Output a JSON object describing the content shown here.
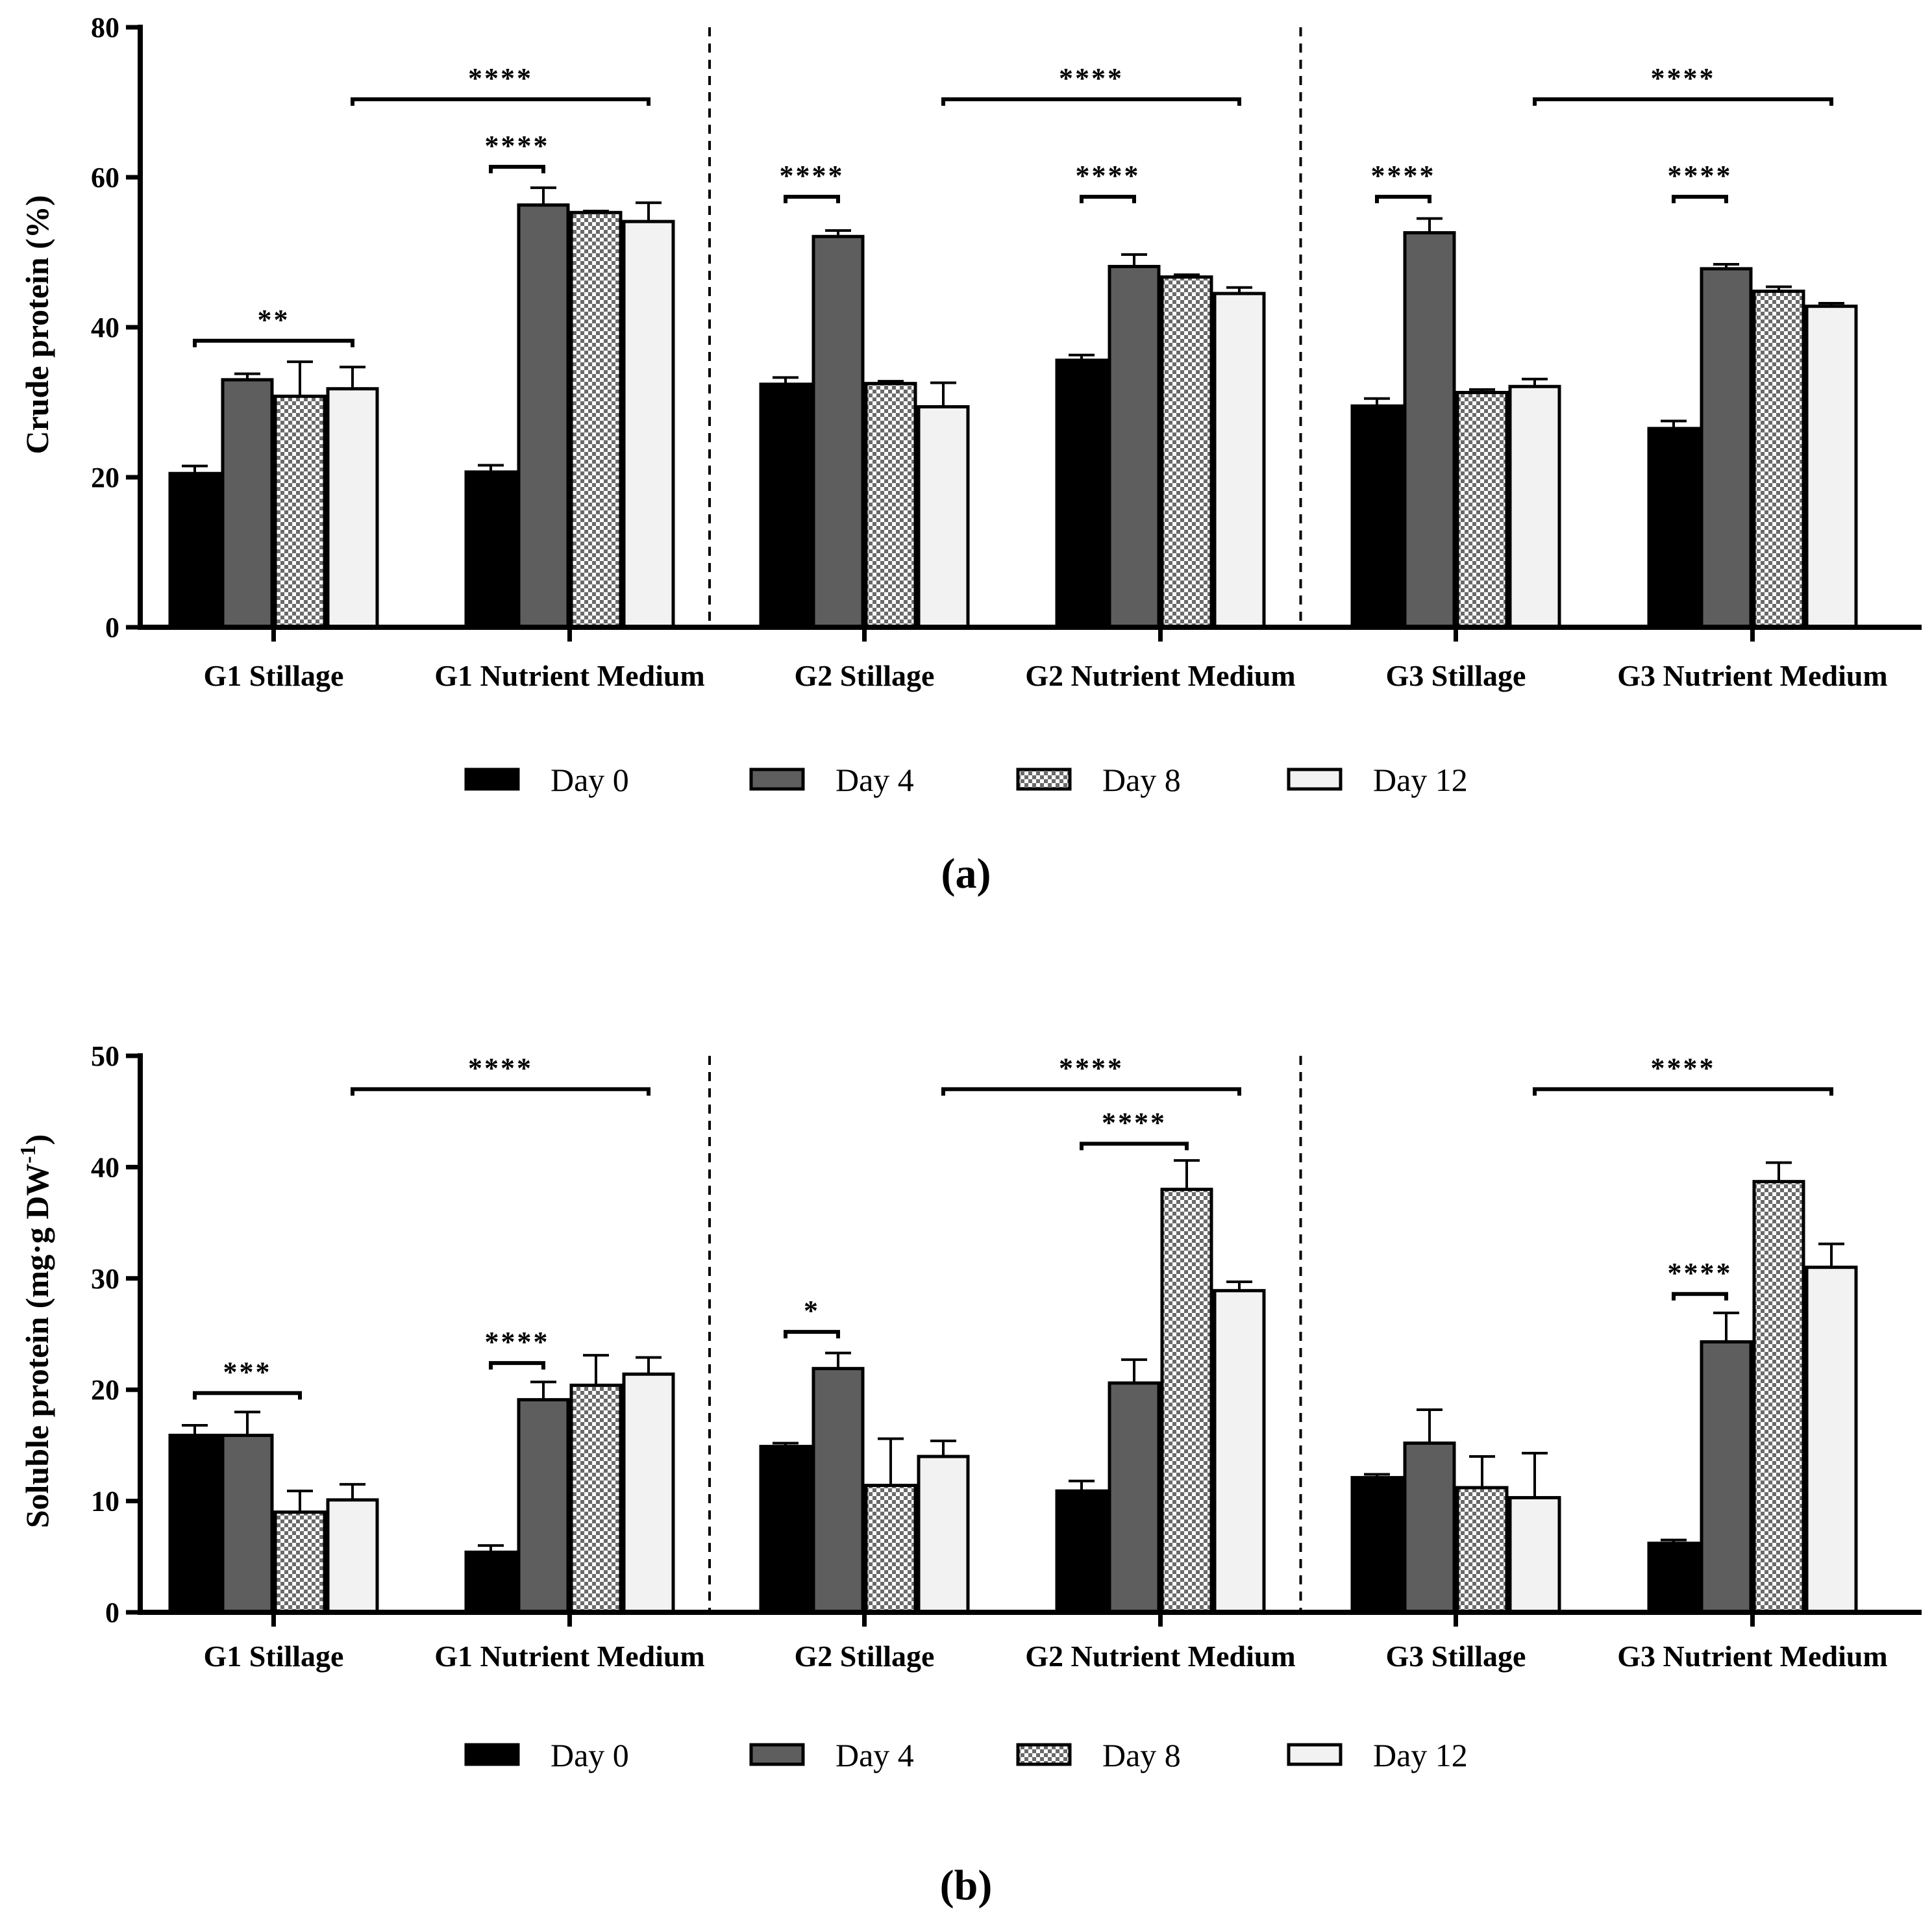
{
  "chart_data": [
    {
      "type": "bar",
      "panel_label": "(a)",
      "ylabel": "Crude protein (%)",
      "ylim": [
        0,
        80
      ],
      "yticks": [
        "0",
        "20",
        "40",
        "60",
        "80"
      ],
      "categories": [
        "G1 Stillage",
        "G1 Nutrient Medium",
        "G2 Stillage",
        "G2 Nutrient Medium",
        "G3 Stillage",
        "G3 Nutrient Medium"
      ],
      "series": [
        {
          "name": "Day 0",
          "values": [
            20.5,
            20.7,
            32.4,
            35.6,
            29.5,
            26.5
          ],
          "errors": [
            1.0,
            0.9,
            0.9,
            0.7,
            1.0,
            1.0
          ]
        },
        {
          "name": "Day 4",
          "values": [
            33.0,
            56.3,
            52.1,
            48.1,
            52.6,
            47.8
          ],
          "errors": [
            0.8,
            2.3,
            0.8,
            1.6,
            1.9,
            0.6
          ]
        },
        {
          "name": "Day 8",
          "values": [
            30.8,
            55.3,
            32.5,
            46.7,
            31.3,
            44.8
          ],
          "errors": [
            4.6,
            0.2,
            0.3,
            0.3,
            0.4,
            0.6
          ]
        },
        {
          "name": "Day 12",
          "values": [
            31.8,
            54.1,
            29.4,
            44.5,
            32.1,
            42.8
          ],
          "errors": [
            2.9,
            2.5,
            3.2,
            0.8,
            1.0,
            0.4
          ]
        }
      ],
      "significance": [
        {
          "label": "**",
          "from": [
            0,
            0
          ],
          "to": [
            0,
            3
          ],
          "level": 38.2
        },
        {
          "label": "****",
          "from": [
            1,
            0
          ],
          "to": [
            1,
            1
          ],
          "level": 61.4
        },
        {
          "label": "****",
          "from": [
            0,
            3
          ],
          "to": [
            1,
            3
          ],
          "level": 70.4
        },
        {
          "label": "****",
          "from": [
            2,
            0
          ],
          "to": [
            2,
            1
          ],
          "level": 57.4
        },
        {
          "label": "****",
          "from": [
            3,
            0
          ],
          "to": [
            3,
            1
          ],
          "level": 57.4
        },
        {
          "label": "****",
          "from": [
            2,
            3
          ],
          "to": [
            3,
            3
          ],
          "level": 70.4
        },
        {
          "label": "****",
          "from": [
            4,
            0
          ],
          "to": [
            4,
            1
          ],
          "level": 57.4
        },
        {
          "label": "****",
          "from": [
            5,
            0
          ],
          "to": [
            5,
            1
          ],
          "level": 57.4
        },
        {
          "label": "****",
          "from": [
            4,
            3
          ],
          "to": [
            5,
            3
          ],
          "level": 70.4
        }
      ],
      "separators_after_category": [
        1,
        3
      ]
    },
    {
      "type": "bar",
      "panel_label": "(b)",
      "ylabel": "Soluble protein (mg·g DW",
      "ylabel_superscript": "-1",
      "ylabel_close": ")",
      "ylim": [
        0,
        50
      ],
      "yticks": [
        "0",
        "10",
        "20",
        "30",
        "40",
        "50"
      ],
      "categories": [
        "G1 Stillage",
        "G1 Nutrient Medium",
        "G2 Stillage",
        "G2 Nutrient Medium",
        "G3 Stillage",
        "G3 Nutrient Medium"
      ],
      "series": [
        {
          "name": "Day 0",
          "values": [
            15.9,
            5.4,
            14.9,
            10.9,
            12.1,
            6.2
          ],
          "errors": [
            0.9,
            0.6,
            0.3,
            0.9,
            0.3,
            0.3
          ]
        },
        {
          "name": "Day 4",
          "values": [
            15.9,
            19.1,
            21.9,
            20.6,
            15.2,
            24.3
          ],
          "errors": [
            2.1,
            1.6,
            1.4,
            2.1,
            3.0,
            2.6
          ]
        },
        {
          "name": "Day 8",
          "values": [
            9.0,
            20.4,
            11.4,
            38.0,
            11.2,
            38.7
          ],
          "errors": [
            1.9,
            2.7,
            4.2,
            2.6,
            2.8,
            1.7
          ]
        },
        {
          "name": "Day 12",
          "values": [
            10.1,
            21.4,
            14.0,
            28.9,
            10.3,
            31.0
          ],
          "errors": [
            1.4,
            1.5,
            1.4,
            0.8,
            4.0,
            2.1
          ]
        }
      ],
      "significance": [
        {
          "label": "***",
          "from": [
            0,
            0
          ],
          "to": [
            0,
            2
          ],
          "level": 19.7
        },
        {
          "label": "****",
          "from": [
            1,
            0
          ],
          "to": [
            1,
            1
          ],
          "level": 22.4
        },
        {
          "label": "****",
          "from": [
            0,
            3
          ],
          "to": [
            1,
            3
          ],
          "level": 47.0
        },
        {
          "label": "*",
          "from": [
            2,
            0
          ],
          "to": [
            2,
            1
          ],
          "level": 25.2
        },
        {
          "label": "****",
          "from": [
            3,
            0
          ],
          "to": [
            3,
            2
          ],
          "level": 42.1
        },
        {
          "label": "****",
          "from": [
            2,
            3
          ],
          "to": [
            3,
            3
          ],
          "level": 47.0
        },
        {
          "label": "****",
          "from": [
            5,
            0
          ],
          "to": [
            5,
            1
          ],
          "level": 28.6
        },
        {
          "label": "****",
          "from": [
            4,
            3
          ],
          "to": [
            5,
            3
          ],
          "level": 47.0
        }
      ],
      "separators_after_category": [
        1,
        3
      ]
    }
  ],
  "legend": [
    "Day 0",
    "Day 4",
    "Day 8",
    "Day 12"
  ],
  "colors": {
    "Day 0": "#000000",
    "Day 4": "#5e5e5e",
    "Day 8": "pattern",
    "Day 12": "#f2f2f2"
  }
}
